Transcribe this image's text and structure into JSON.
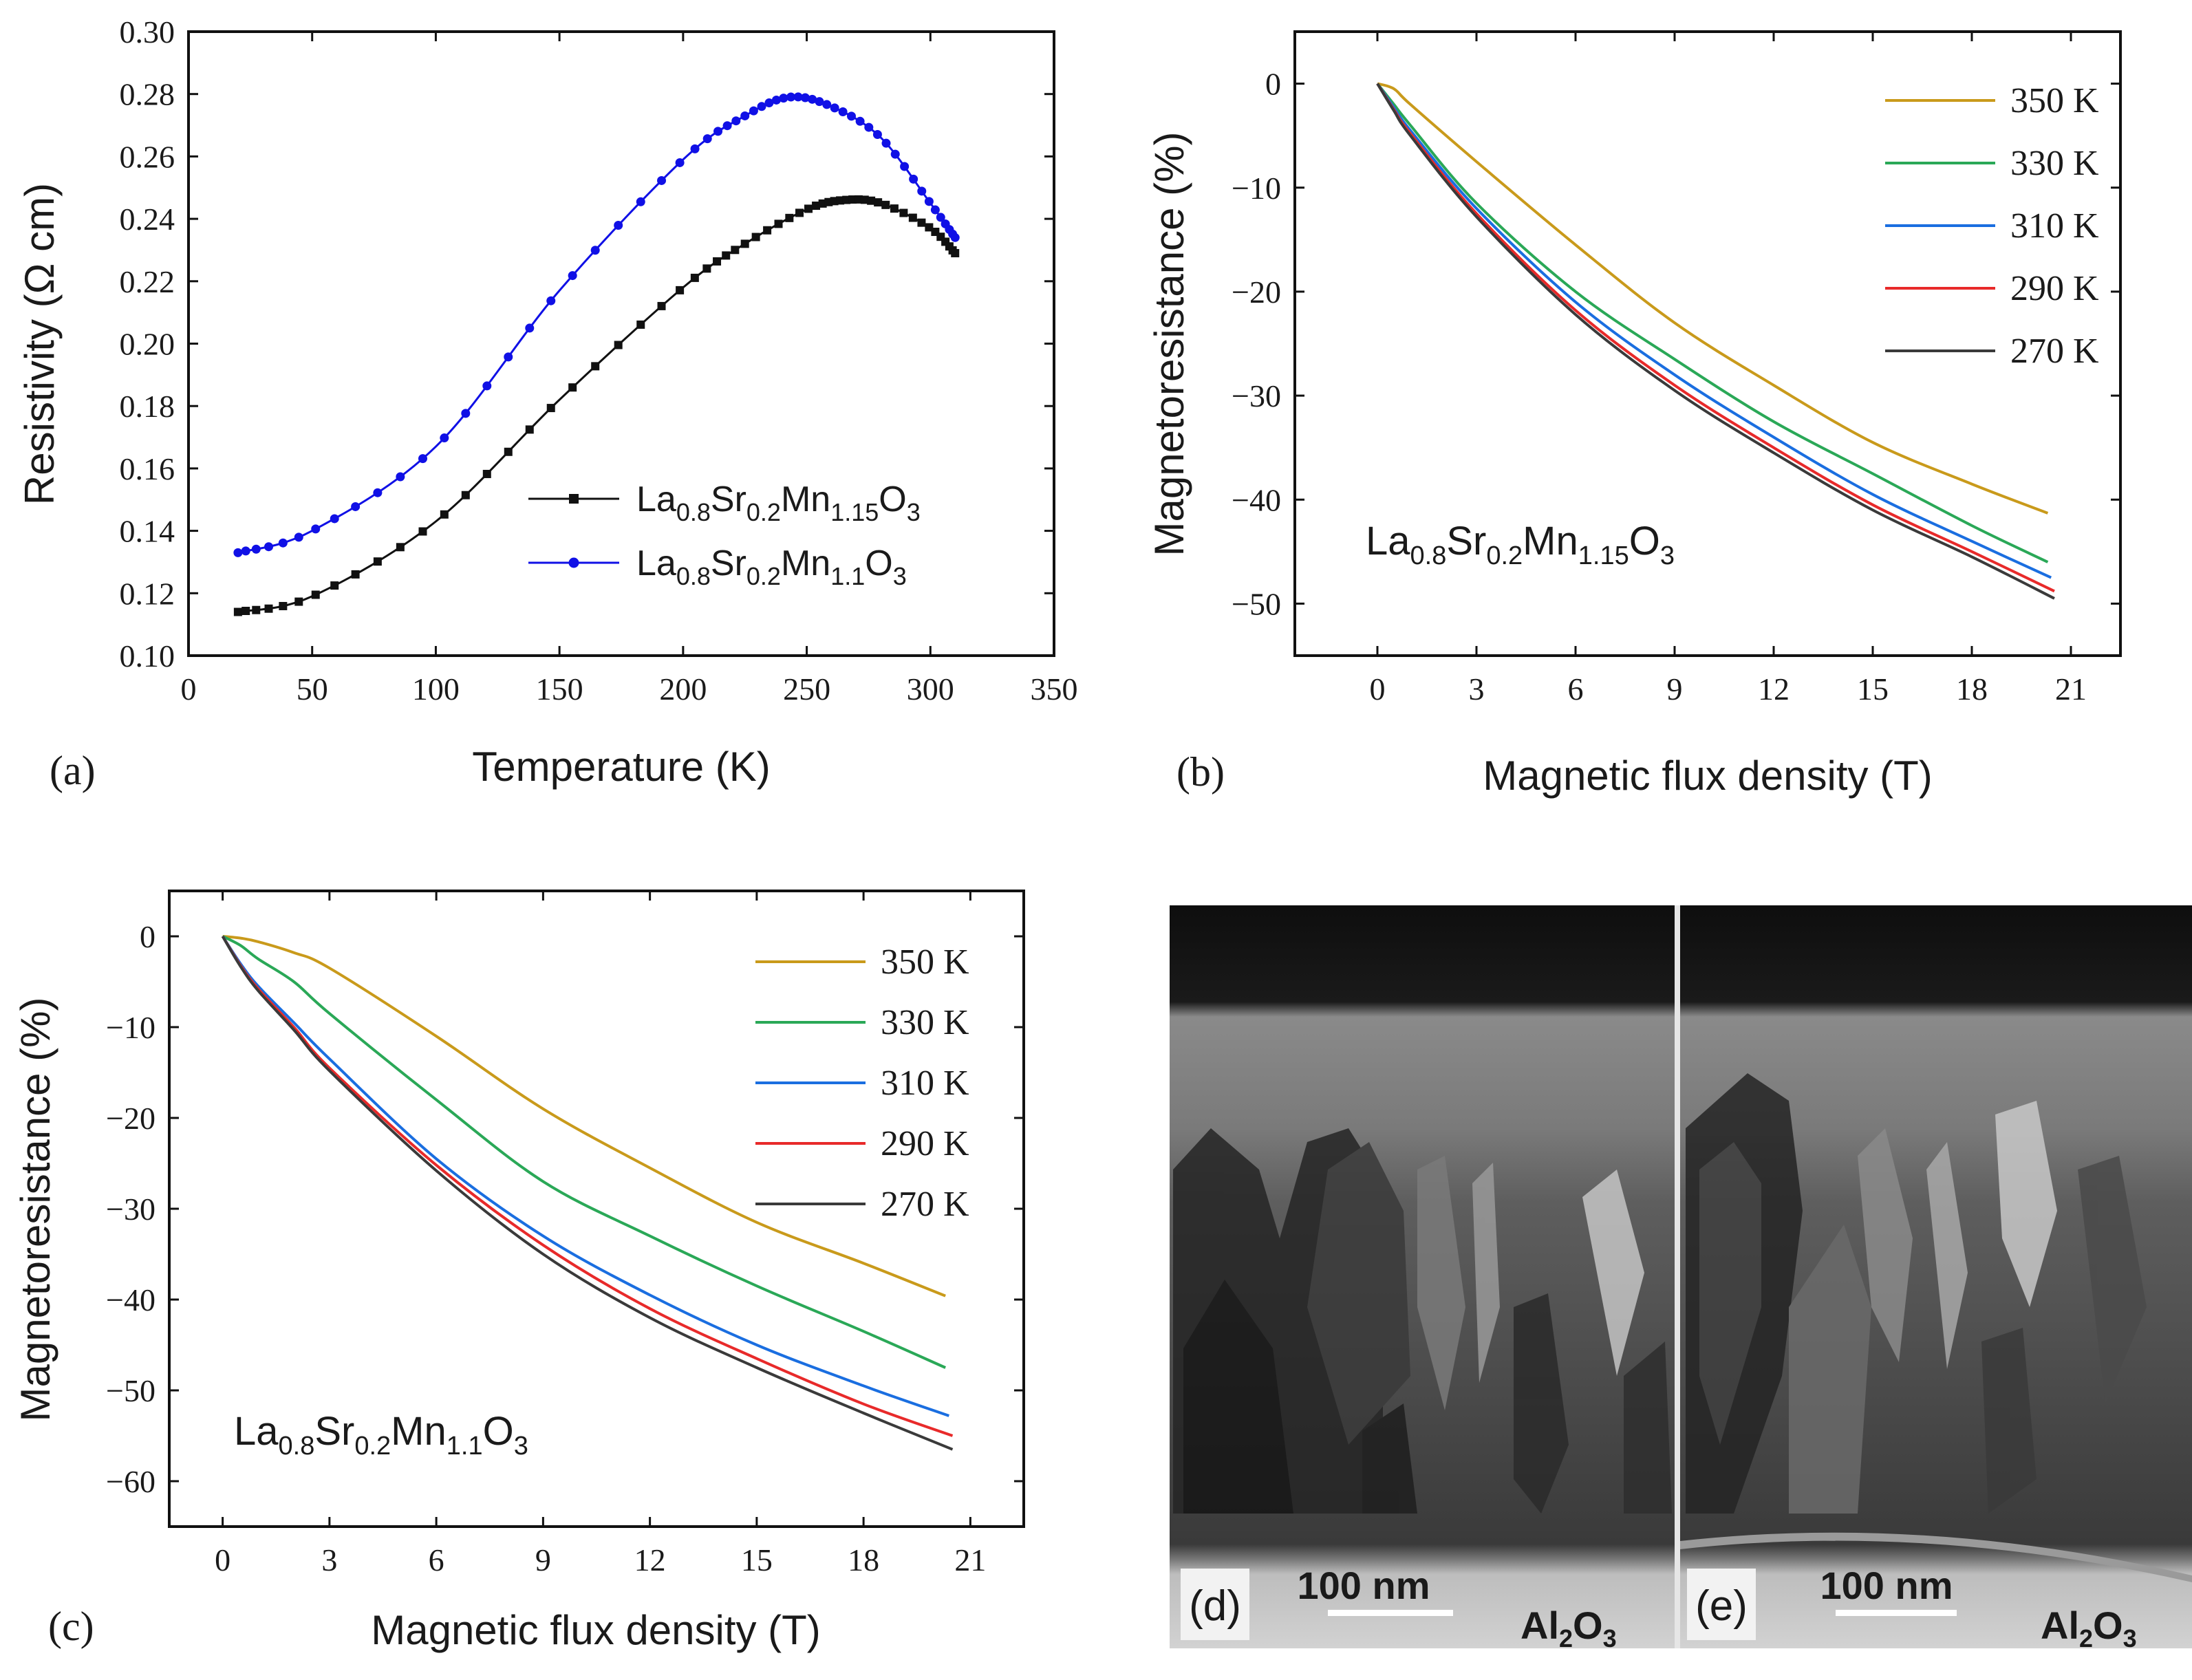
{
  "chart_data": [
    {
      "panel": "(a)",
      "type": "line",
      "xlabel": "Temperature (K)",
      "ylabel": "Resistivity (Ω cm)",
      "xlim": [
        0,
        350
      ],
      "ylim": [
        0.1,
        0.3
      ],
      "xticks": [
        0,
        50,
        100,
        150,
        200,
        250,
        300,
        350
      ],
      "yticks": [
        0.1,
        0.12,
        0.14,
        0.16,
        0.18,
        0.2,
        0.22,
        0.24,
        0.26,
        0.28,
        0.3
      ],
      "ytick_decimals": 2,
      "legend_position": "lower-right",
      "series": [
        {
          "name": "La0.8Sr0.2Mn1.15O3",
          "label_parts": [
            [
              "La",
              ""
            ],
            [
              "0.8",
              "sub"
            ],
            [
              "Sr",
              ""
            ],
            [
              "0.2",
              "sub"
            ],
            [
              "Mn",
              ""
            ],
            [
              "1.15",
              "sub"
            ],
            [
              "O",
              ""
            ],
            [
              "3",
              "sub"
            ]
          ],
          "color": "#111111",
          "marker": "square",
          "x": [
            20,
            50,
            100,
            150,
            200,
            225,
            250,
            265,
            280,
            300,
            310
          ],
          "y": [
            0.114,
            0.119,
            0.143,
            0.182,
            0.218,
            0.232,
            0.243,
            0.246,
            0.245,
            0.237,
            0.229
          ]
        },
        {
          "name": "La0.8Sr0.2Mn1.1O3",
          "label_parts": [
            [
              "La",
              ""
            ],
            [
              "0.8",
              "sub"
            ],
            [
              "Sr",
              ""
            ],
            [
              "0.2",
              "sub"
            ],
            [
              "Mn",
              ""
            ],
            [
              "1.1",
              "sub"
            ],
            [
              "O",
              ""
            ],
            [
              "3",
              "sub"
            ]
          ],
          "color": "#1010e6",
          "marker": "circle",
          "x": [
            20,
            50,
            100,
            150,
            200,
            225,
            243,
            260,
            280,
            300,
            310
          ],
          "y": [
            0.133,
            0.14,
            0.167,
            0.217,
            0.259,
            0.273,
            0.279,
            0.276,
            0.266,
            0.245,
            0.234
          ]
        }
      ]
    },
    {
      "panel": "(b)",
      "type": "line",
      "xlabel": "Magnetic flux density (T)",
      "ylabel": "Magnetoresistance (%)",
      "xlim": [
        -2.5,
        22.5
      ],
      "ylim": [
        -55,
        5
      ],
      "xticks": [
        0,
        3,
        6,
        9,
        12,
        15,
        18,
        21
      ],
      "yticks": [
        0,
        -10,
        -20,
        -30,
        -40,
        -50
      ],
      "ytick_decimals": 0,
      "legend_position": "top-right",
      "annotation_parts": [
        [
          "La",
          ""
        ],
        [
          "0.8",
          "sub"
        ],
        [
          "Sr",
          ""
        ],
        [
          "0.2",
          "sub"
        ],
        [
          "Mn",
          ""
        ],
        [
          "1.15",
          "sub"
        ],
        [
          "O",
          ""
        ],
        [
          "3",
          "sub"
        ]
      ],
      "series": [
        {
          "name": "350 K",
          "color": "#c99a1b",
          "x": [
            0,
            0.5,
            1,
            3,
            6,
            9,
            12,
            15,
            18,
            20.3
          ],
          "y": [
            0,
            -0.5,
            -2,
            -7.5,
            -15.5,
            -23,
            -29,
            -34.5,
            -38.5,
            -41.3
          ]
        },
        {
          "name": "330 K",
          "color": "#2aa857",
          "x": [
            0,
            0.5,
            1,
            3,
            6,
            9,
            12,
            15,
            18,
            20.3
          ],
          "y": [
            0,
            -2,
            -4,
            -11.5,
            -20,
            -26.5,
            -32.5,
            -37.5,
            -42.5,
            -46
          ]
        },
        {
          "name": "310 K",
          "color": "#1a6ee0",
          "x": [
            0,
            0.5,
            1,
            3,
            6,
            9,
            12,
            15,
            18,
            20.4
          ],
          "y": [
            0,
            -2.3,
            -4.5,
            -12,
            -21,
            -28,
            -34,
            -39.5,
            -44,
            -47.5
          ]
        },
        {
          "name": "290 K",
          "color": "#e82a2a",
          "x": [
            0,
            0.5,
            1,
            3,
            6,
            9,
            12,
            15,
            18,
            20.5
          ],
          "y": [
            0,
            -2.5,
            -4.8,
            -12.5,
            -21.8,
            -29,
            -35,
            -40.5,
            -45,
            -48.8
          ]
        },
        {
          "name": "270 K",
          "color": "#3a3a3a",
          "x": [
            0,
            0.5,
            1,
            3,
            6,
            9,
            12,
            15,
            18,
            20.5
          ],
          "y": [
            0,
            -2.6,
            -5,
            -12.8,
            -22.2,
            -29.5,
            -35.5,
            -41,
            -45.5,
            -49.5
          ]
        }
      ]
    },
    {
      "panel": "(c)",
      "type": "line",
      "xlabel": "Magnetic flux density (T)",
      "ylabel": "Magnetoresistance (%)",
      "xlim": [
        -1.5,
        22.5
      ],
      "ylim": [
        -65,
        5
      ],
      "xticks": [
        0,
        3,
        6,
        9,
        12,
        15,
        18,
        21
      ],
      "yticks": [
        0,
        -10,
        -20,
        -30,
        -40,
        -50,
        -60
      ],
      "ytick_decimals": 0,
      "legend_position": "top-right",
      "annotation_parts": [
        [
          "La",
          ""
        ],
        [
          "0.8",
          "sub"
        ],
        [
          "Sr",
          ""
        ],
        [
          "0.2",
          "sub"
        ],
        [
          "Mn",
          ""
        ],
        [
          "1.1",
          "sub"
        ],
        [
          "O",
          ""
        ],
        [
          "3",
          "sub"
        ]
      ],
      "series": [
        {
          "name": "350 K",
          "color": "#c99a1b",
          "x": [
            0,
            0.5,
            1,
            2,
            3,
            6,
            9,
            12,
            15,
            18,
            20.3
          ],
          "y": [
            0,
            -0.2,
            -0.6,
            -1.8,
            -3.5,
            -11,
            -19,
            -25.5,
            -31.5,
            -36,
            -39.6
          ]
        },
        {
          "name": "330 K",
          "color": "#2aa857",
          "x": [
            0,
            0.5,
            1,
            2,
            3,
            6,
            9,
            12,
            15,
            18,
            20.3
          ],
          "y": [
            0,
            -1,
            -2.5,
            -5,
            -8.5,
            -18,
            -27,
            -33,
            -38.5,
            -43.5,
            -47.5
          ]
        },
        {
          "name": "310 K",
          "color": "#1a6ee0",
          "x": [
            0,
            0.5,
            1,
            2,
            3,
            6,
            9,
            12,
            15,
            18,
            20.4
          ],
          "y": [
            0,
            -3,
            -5.5,
            -9.5,
            -13.5,
            -24.5,
            -33,
            -39.5,
            -45,
            -49.5,
            -52.8
          ]
        },
        {
          "name": "290 K",
          "color": "#e82a2a",
          "x": [
            0,
            0.5,
            1,
            2,
            3,
            6,
            9,
            12,
            15,
            18,
            20.5
          ],
          "y": [
            0,
            -3.2,
            -5.8,
            -10,
            -14.5,
            -25.2,
            -34,
            -41,
            -46.5,
            -51.5,
            -55
          ]
        },
        {
          "name": "270 K",
          "color": "#3a3a3a",
          "x": [
            0,
            0.5,
            1,
            2,
            3,
            6,
            9,
            12,
            15,
            18,
            20.5
          ],
          "y": [
            0,
            -3.3,
            -6,
            -10.3,
            -14.8,
            -25.8,
            -35,
            -42,
            -47.5,
            -52.5,
            -56.5
          ]
        }
      ]
    }
  ],
  "panel_labels": {
    "a": "(a)",
    "b": "(b)",
    "c": "(c)",
    "d": "(d)",
    "e": "(e)"
  },
  "tem_images": {
    "scale_bar_text": "100 nm",
    "substrate_label_main": "Al",
    "substrate_label_sub": "2",
    "substrate_label_tail": "O",
    "substrate_label_sub2": "3"
  }
}
